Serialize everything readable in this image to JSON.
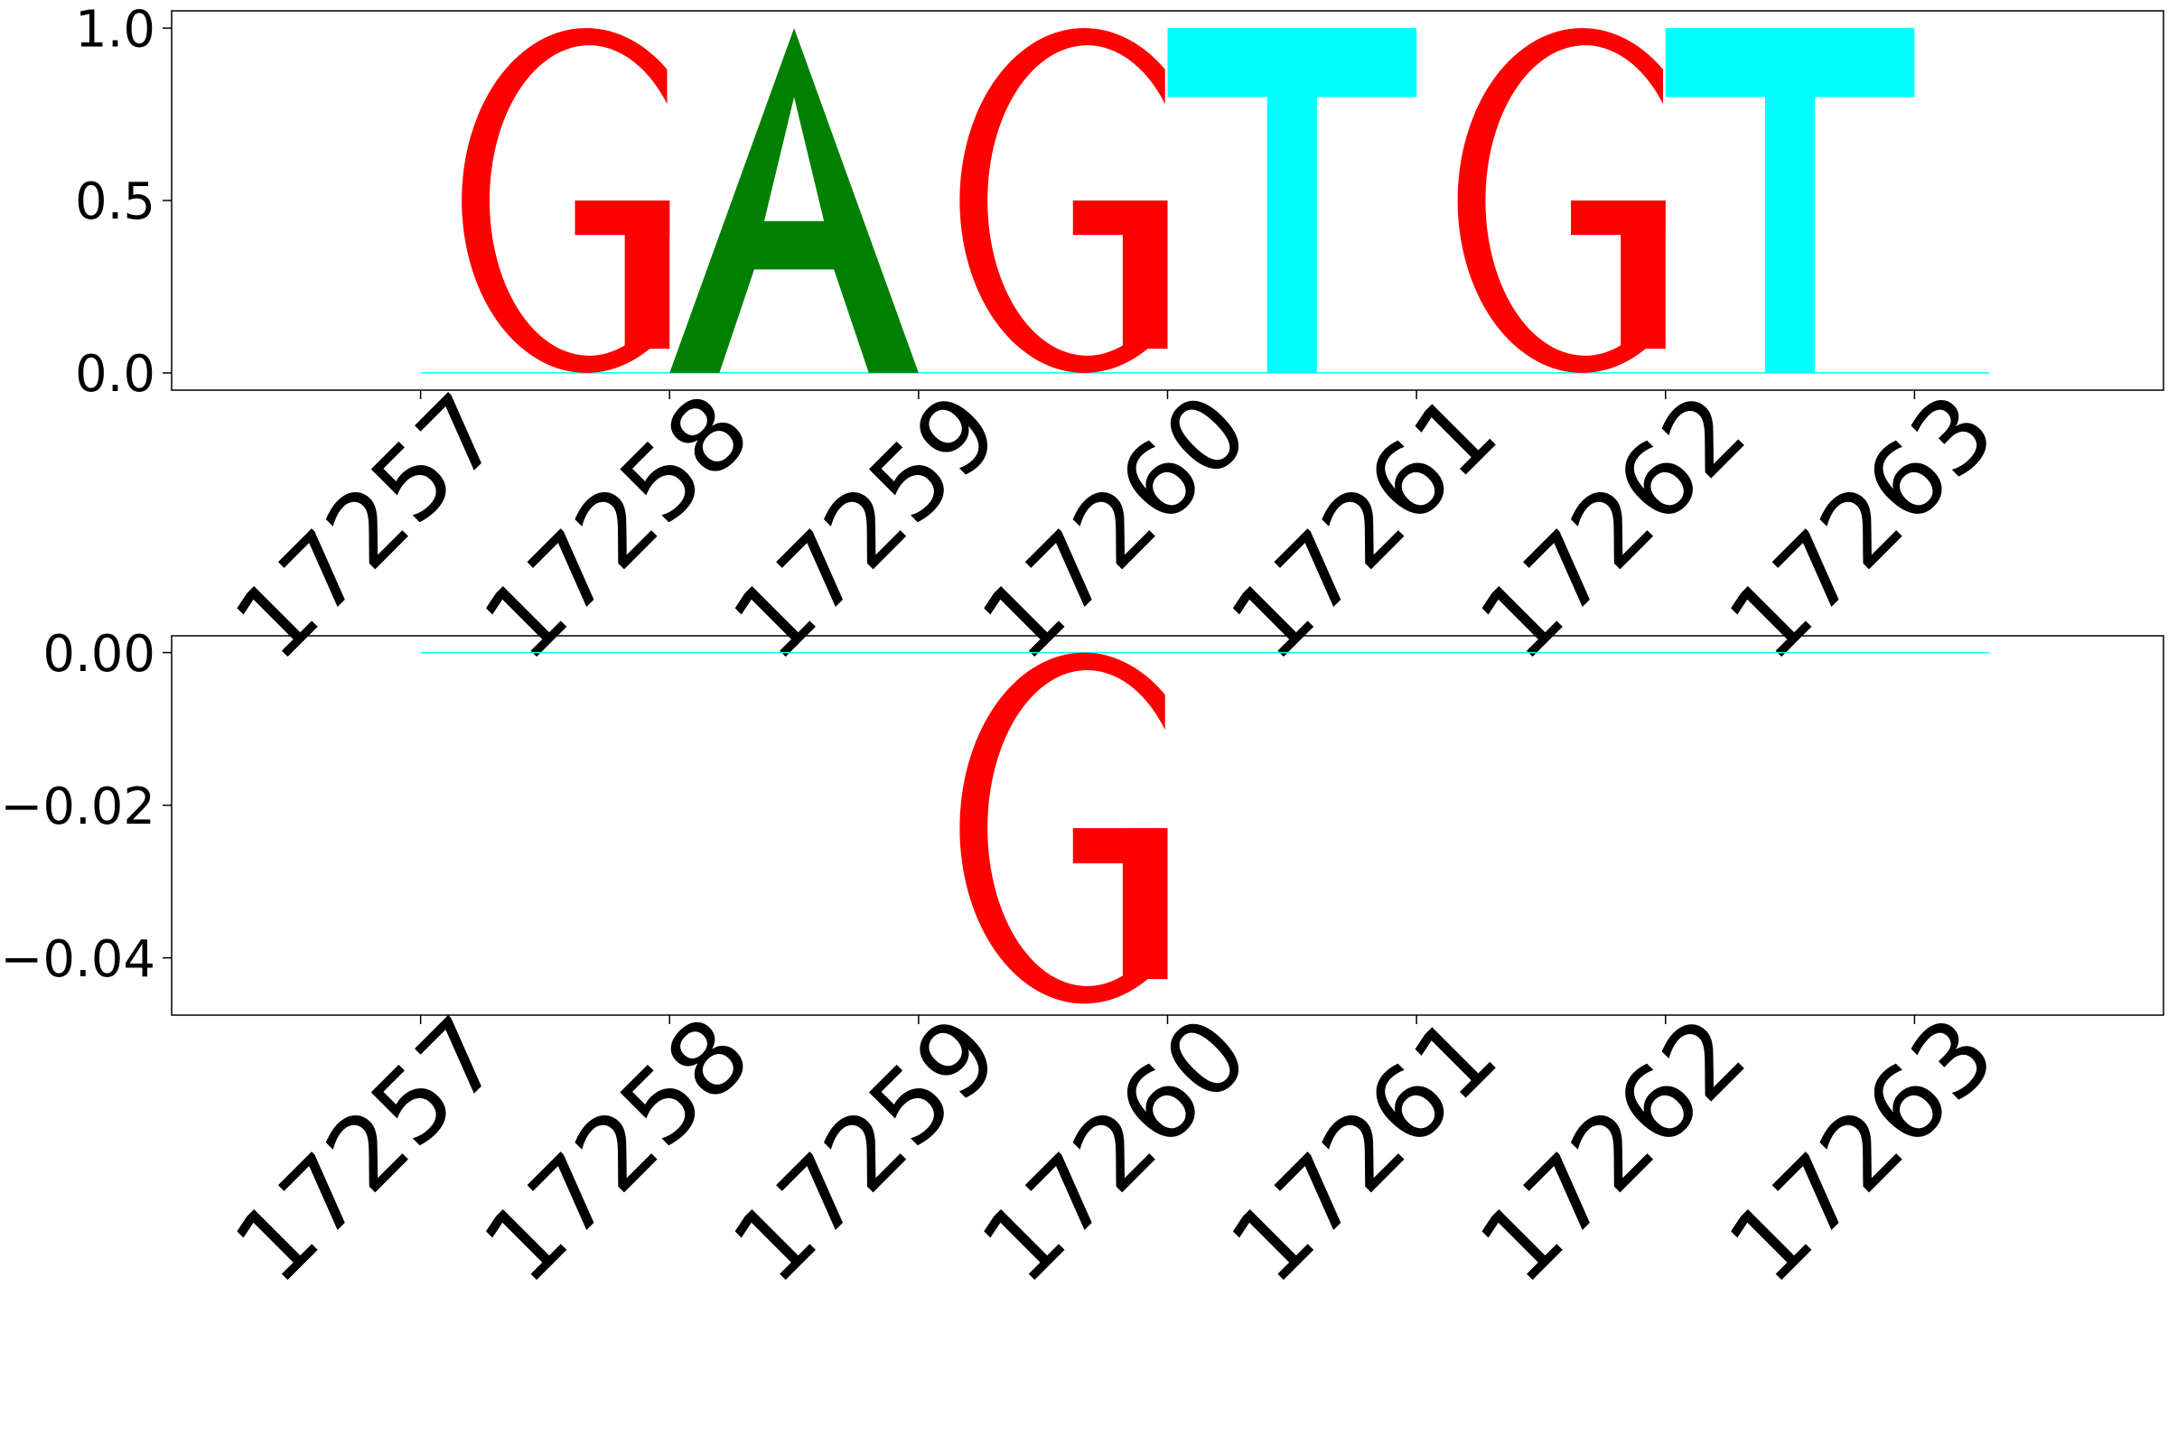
{
  "colors": {
    "G": "#ff0000",
    "A": "#008000",
    "T": "#00ffff",
    "C": "#0000ff",
    "axis": "#000000",
    "background": "#ffffff"
  },
  "chart_data": [
    {
      "type": "sequence-logo",
      "title": "",
      "xlabel": "",
      "ylabel": "",
      "grid": false,
      "positions": [
        "17257",
        "17258",
        "17259",
        "17260",
        "17261",
        "17262",
        "17263"
      ],
      "ylim": [
        -0.05,
        1.05
      ],
      "yticks": [
        {
          "value": 0.0,
          "label": "0.0"
        },
        {
          "value": 0.5,
          "label": "0.5"
        },
        {
          "value": 1.0,
          "label": "1.0"
        }
      ],
      "letters": [
        {
          "base": "G",
          "position": 17257,
          "value": 1.0
        },
        {
          "base": "A",
          "position": 17258,
          "value": 1.0
        },
        {
          "base": "G",
          "position": 17259,
          "value": 1.0
        },
        {
          "base": "T",
          "position": 17260,
          "value": 1.0
        },
        {
          "base": "G",
          "position": 17261,
          "value": 1.0
        },
        {
          "base": "T",
          "position": 17262,
          "value": 1.0
        }
      ]
    },
    {
      "type": "sequence-logo",
      "title": "",
      "xlabel": "",
      "ylabel": "",
      "grid": false,
      "positions": [
        "17257",
        "17258",
        "17259",
        "17260",
        "17261",
        "17262",
        "17263"
      ],
      "ylim": [
        -0.0475,
        0.0022
      ],
      "yticks": [
        {
          "value": 0.0,
          "label": "0.00"
        },
        {
          "value": -0.02,
          "label": "−0.02"
        },
        {
          "value": -0.04,
          "label": "−0.04"
        }
      ],
      "letters": [
        {
          "base": "G",
          "position": 17259,
          "value": -0.046
        }
      ]
    }
  ]
}
